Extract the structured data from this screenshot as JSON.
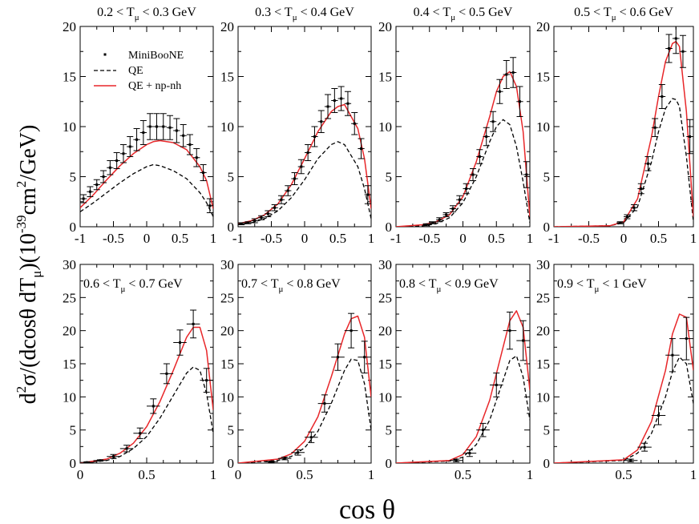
{
  "figure": {
    "xlabel": "cos θ",
    "ylabel": {
      "prefix": "d",
      "sup1": "2",
      "mid": "σ/(dcosθ dT",
      "sub": "μ",
      "mid2": ")(10",
      "sup2": "-39",
      "mid3": "cm",
      "sup3": "2",
      "suffix": "/GeV)"
    },
    "legend": {
      "placement": "top-left of first panel",
      "entries": [
        "MiniBooNE",
        "QE",
        "QE + np-nh"
      ]
    },
    "colors": {
      "data": "#000000",
      "qe": "#000000",
      "qe_npnh": "#e8272a"
    }
  },
  "chart_data": [
    {
      "type": "line",
      "title": "0.2 < T_μ < 0.3 GeV",
      "xlim": [
        -1,
        1
      ],
      "ylim": [
        0,
        20
      ],
      "xticks": [
        -1,
        -0.5,
        0,
        0.5,
        1
      ],
      "xticklabels": [
        "-1",
        "-0.5",
        "0",
        "0.5",
        "1"
      ],
      "yticks": [
        0,
        5,
        10,
        15,
        20
      ],
      "yticklabels": [
        "0",
        "5",
        "10",
        "15",
        "20"
      ],
      "data": {
        "x": [
          -0.95,
          -0.85,
          -0.75,
          -0.65,
          -0.55,
          -0.45,
          -0.35,
          -0.25,
          -0.15,
          -0.05,
          0.05,
          0.15,
          0.25,
          0.35,
          0.45,
          0.55,
          0.65,
          0.75,
          0.85,
          0.95
        ],
        "y": [
          2.8,
          3.5,
          4.2,
          5.0,
          5.9,
          6.6,
          7.3,
          8.0,
          8.7,
          9.4,
          10.0,
          10.0,
          10.0,
          9.9,
          9.6,
          9.1,
          8.2,
          6.9,
          5.4,
          2.1
        ],
        "err": [
          0.4,
          0.5,
          0.5,
          0.6,
          0.7,
          0.8,
          0.9,
          1.0,
          1.1,
          1.2,
          1.3,
          1.3,
          1.3,
          1.2,
          1.2,
          1.1,
          1.0,
          0.9,
          0.8,
          0.7
        ],
        "xerr": 0.05
      },
      "series": [
        {
          "name": "QE",
          "x": [
            -1,
            -0.8,
            -0.6,
            -0.4,
            -0.2,
            0,
            0.1,
            0.2,
            0.4,
            0.6,
            0.8,
            0.9,
            1
          ],
          "y": [
            1.5,
            2.4,
            3.4,
            4.4,
            5.3,
            6.0,
            6.2,
            6.1,
            5.6,
            4.8,
            3.4,
            2.4,
            1.0
          ]
        },
        {
          "name": "QE + np-nh",
          "x": [
            -1,
            -0.8,
            -0.6,
            -0.4,
            -0.2,
            0,
            0.1,
            0.2,
            0.4,
            0.6,
            0.8,
            0.9,
            1
          ],
          "y": [
            1.9,
            3.2,
            4.7,
            6.1,
            7.3,
            8.2,
            8.5,
            8.6,
            8.4,
            7.7,
            6.0,
            4.6,
            1.8
          ]
        }
      ]
    },
    {
      "type": "line",
      "title": "0.3 < T_μ < 0.4 GeV",
      "xlim": [
        -1,
        1
      ],
      "ylim": [
        0,
        20
      ],
      "xticks": [
        -1,
        -0.5,
        0,
        0.5,
        1
      ],
      "xticklabels": [
        "-1",
        "-0.5",
        "0",
        "0.5",
        "1"
      ],
      "yticks": [
        0,
        5,
        10,
        15,
        20
      ],
      "yticklabels": [
        "0",
        "5",
        "10",
        "15",
        "20"
      ],
      "data": {
        "x": [
          -0.95,
          -0.85,
          -0.75,
          -0.65,
          -0.55,
          -0.45,
          -0.35,
          -0.25,
          -0.15,
          -0.05,
          0.05,
          0.15,
          0.25,
          0.35,
          0.45,
          0.55,
          0.65,
          0.75,
          0.85,
          0.95
        ],
        "y": [
          0.3,
          0.4,
          0.6,
          0.9,
          1.3,
          1.9,
          2.7,
          3.6,
          4.8,
          6.0,
          7.4,
          9.0,
          10.5,
          12.0,
          12.6,
          12.8,
          12.3,
          10.3,
          7.8,
          3.2
        ],
        "err": [
          0.1,
          0.1,
          0.2,
          0.2,
          0.3,
          0.3,
          0.4,
          0.5,
          0.6,
          0.7,
          0.8,
          1.0,
          1.1,
          1.2,
          1.2,
          1.2,
          1.2,
          1.1,
          1.0,
          0.9
        ],
        "xerr": 0.05
      },
      "series": [
        {
          "name": "QE",
          "x": [
            -1,
            -0.8,
            -0.6,
            -0.4,
            -0.2,
            0,
            0.2,
            0.4,
            0.5,
            0.6,
            0.8,
            0.9,
            1
          ],
          "y": [
            0.2,
            0.4,
            0.8,
            1.6,
            2.9,
            4.7,
            6.8,
            8.2,
            8.5,
            8.2,
            6.0,
            3.8,
            0.8
          ]
        },
        {
          "name": "QE + np-nh",
          "x": [
            -1,
            -0.8,
            -0.6,
            -0.4,
            -0.2,
            0,
            0.2,
            0.4,
            0.5,
            0.6,
            0.8,
            0.9,
            1
          ],
          "y": [
            0.3,
            0.6,
            1.2,
            2.3,
            4.2,
            6.8,
            9.5,
            11.5,
            12.0,
            12.2,
            9.8,
            6.8,
            1.8
          ]
        }
      ]
    },
    {
      "type": "line",
      "title": "0.4 < T_μ < 0.5 GeV",
      "xlim": [
        -1,
        1
      ],
      "ylim": [
        0,
        20
      ],
      "xticks": [
        -1,
        -0.5,
        0,
        0.5,
        1
      ],
      "xticklabels": [
        "-1",
        "-0.5",
        "0",
        "0.5",
        "1"
      ],
      "yticks": [
        0,
        5,
        10,
        15,
        20
      ],
      "yticklabels": [
        "0",
        "5",
        "10",
        "15",
        "20"
      ],
      "data": {
        "x": [
          -0.55,
          -0.45,
          -0.35,
          -0.25,
          -0.15,
          -0.05,
          0.05,
          0.15,
          0.25,
          0.35,
          0.45,
          0.55,
          0.65,
          0.75,
          0.85,
          0.95
        ],
        "y": [
          0.2,
          0.4,
          0.7,
          1.2,
          1.8,
          2.7,
          3.8,
          5.2,
          7.0,
          9.0,
          10.5,
          13.5,
          15.2,
          15.4,
          12.5,
          5.2
        ],
        "err": [
          0.1,
          0.1,
          0.2,
          0.2,
          0.3,
          0.4,
          0.5,
          0.6,
          0.7,
          0.9,
          1.0,
          1.2,
          1.4,
          1.5,
          1.5,
          1.3
        ],
        "xerr": 0.05
      },
      "series": [
        {
          "name": "QE",
          "x": [
            -1,
            -0.6,
            -0.4,
            -0.2,
            0,
            0.2,
            0.4,
            0.5,
            0.6,
            0.7,
            0.8,
            0.9,
            1
          ],
          "y": [
            0,
            0.1,
            0.3,
            0.9,
            2.4,
            5.0,
            8.5,
            10.0,
            10.7,
            10.2,
            8.0,
            4.5,
            0.4
          ]
        },
        {
          "name": "QE + np-nh",
          "x": [
            -1,
            -0.6,
            -0.4,
            -0.2,
            0,
            0.2,
            0.4,
            0.5,
            0.6,
            0.7,
            0.8,
            0.9,
            1
          ],
          "y": [
            0,
            0.2,
            0.5,
            1.2,
            3.0,
            6.5,
            11.0,
            13.5,
            15.0,
            15.5,
            14.0,
            9.5,
            1.0
          ]
        }
      ]
    },
    {
      "type": "line",
      "title": "0.5 < T_μ < 0.6 GeV",
      "xlim": [
        -1,
        1
      ],
      "ylim": [
        0,
        20
      ],
      "xticks": [
        -1,
        -0.5,
        0,
        0.5,
        1
      ],
      "xticklabels": [
        "-1",
        "-0.5",
        "0",
        "0.5",
        "1"
      ],
      "yticks": [
        0,
        5,
        10,
        15,
        20
      ],
      "yticklabels": [
        "0",
        "5",
        "10",
        "15",
        "20"
      ],
      "data": {
        "x": [
          -0.05,
          0.05,
          0.15,
          0.25,
          0.35,
          0.45,
          0.55,
          0.65,
          0.75,
          0.85,
          0.95
        ],
        "y": [
          0.4,
          1.0,
          1.9,
          3.8,
          6.3,
          9.9,
          13.0,
          17.8,
          18.8,
          17.5,
          9.0
        ],
        "err": [
          0.1,
          0.2,
          0.3,
          0.5,
          0.7,
          0.9,
          1.2,
          1.4,
          1.5,
          1.6,
          1.7
        ],
        "xerr": 0.05
      },
      "series": [
        {
          "name": "QE",
          "x": [
            -1,
            -0.2,
            0,
            0.2,
            0.4,
            0.5,
            0.6,
            0.7,
            0.75,
            0.8,
            0.9,
            1
          ],
          "y": [
            0,
            0.1,
            0.4,
            2.0,
            6.5,
            9.5,
            11.8,
            12.8,
            12.7,
            12.0,
            7.0,
            0.5
          ]
        },
        {
          "name": "QE + np-nh",
          "x": [
            -1,
            -0.2,
            0,
            0.2,
            0.4,
            0.5,
            0.6,
            0.7,
            0.75,
            0.8,
            0.9,
            1
          ],
          "y": [
            0,
            0.1,
            0.5,
            2.8,
            9.0,
            13.0,
            16.5,
            18.3,
            18.5,
            18.0,
            11.5,
            1.0
          ]
        }
      ]
    },
    {
      "type": "line",
      "title": "0.6 < T_μ < 0.7 GeV",
      "xlim": [
        0,
        1
      ],
      "ylim": [
        0,
        30
      ],
      "xticks": [
        0,
        0.5,
        1
      ],
      "xticklabels": [
        "0",
        "0.5",
        "1"
      ],
      "yticks": [
        0,
        5,
        10,
        15,
        20,
        25,
        30
      ],
      "yticklabels": [
        "0",
        "5",
        "10",
        "15",
        "20",
        "25",
        "30"
      ],
      "data": {
        "x": [
          0.05,
          0.15,
          0.25,
          0.35,
          0.45,
          0.55,
          0.65,
          0.75,
          0.85,
          0.95
        ],
        "y": [
          0.1,
          0.4,
          1.0,
          2.2,
          4.5,
          8.6,
          13.5,
          18.2,
          21.0,
          12.5
        ],
        "err": [
          0.1,
          0.1,
          0.3,
          0.5,
          0.8,
          1.1,
          1.5,
          1.9,
          2.1,
          1.8
        ],
        "xerr": 0.05
      },
      "series": [
        {
          "name": "QE",
          "x": [
            0,
            0.2,
            0.3,
            0.4,
            0.5,
            0.6,
            0.7,
            0.8,
            0.85,
            0.9,
            0.95,
            1
          ],
          "y": [
            0,
            0.4,
            1.0,
            2.2,
            4.0,
            6.8,
            10.2,
            13.6,
            14.5,
            14.0,
            10.5,
            4.5
          ]
        },
        {
          "name": "QE + np-nh",
          "x": [
            0,
            0.2,
            0.3,
            0.4,
            0.5,
            0.6,
            0.7,
            0.8,
            0.85,
            0.9,
            0.95,
            1
          ],
          "y": [
            0,
            0.6,
            1.5,
            3.0,
            5.5,
            9.3,
            14.0,
            19.0,
            20.5,
            20.5,
            17.0,
            8.0
          ]
        }
      ]
    },
    {
      "type": "line",
      "title": "0.7 < T_μ < 0.8 GeV",
      "xlim": [
        0,
        1
      ],
      "ylim": [
        0,
        30
      ],
      "xticks": [
        0,
        0.5,
        1
      ],
      "xticklabels": [
        "0",
        "0.5",
        "1"
      ],
      "yticks": [
        0,
        5,
        10,
        15,
        20,
        25,
        30
      ],
      "yticklabels": [
        "0",
        "5",
        "10",
        "15",
        "20",
        "25",
        "30"
      ],
      "data": {
        "x": [
          0.25,
          0.35,
          0.45,
          0.55,
          0.65,
          0.75,
          0.85,
          0.95
        ],
        "y": [
          0.2,
          0.7,
          1.6,
          3.9,
          9.0,
          16.0,
          20.0,
          16.0
        ],
        "err": [
          0.1,
          0.2,
          0.4,
          0.8,
          1.3,
          2.0,
          2.6,
          2.4
        ],
        "xerr": 0.05
      },
      "series": [
        {
          "name": "QE",
          "x": [
            0,
            0.3,
            0.4,
            0.5,
            0.6,
            0.7,
            0.8,
            0.85,
            0.9,
            0.95,
            1
          ],
          "y": [
            0,
            0.4,
            1.0,
            2.3,
            4.8,
            9.0,
            14.0,
            15.7,
            15.5,
            12.0,
            5.0
          ]
        },
        {
          "name": "QE + np-nh",
          "x": [
            0,
            0.3,
            0.4,
            0.5,
            0.6,
            0.7,
            0.8,
            0.85,
            0.9,
            0.95,
            1
          ],
          "y": [
            0,
            0.6,
            1.4,
            3.3,
            7.0,
            13.0,
            19.5,
            21.8,
            22.2,
            19.0,
            10.0
          ]
        }
      ]
    },
    {
      "type": "line",
      "title": "0.8 < T_μ < 0.9 GeV",
      "xlim": [
        0,
        1
      ],
      "ylim": [
        0,
        30
      ],
      "xticks": [
        0.5,
        1
      ],
      "xticklabels": [
        "0.5",
        "1"
      ],
      "yticks": [
        0,
        5,
        10,
        15,
        20,
        25,
        30
      ],
      "yticklabels": [
        "0",
        "5",
        "10",
        "15",
        "20",
        "25",
        "30"
      ],
      "data": {
        "x": [
          0.45,
          0.55,
          0.65,
          0.75,
          0.85,
          0.95
        ],
        "y": [
          0.4,
          1.5,
          5.0,
          11.8,
          20.0,
          18.5
        ],
        "err": [
          0.2,
          0.5,
          1.0,
          1.8,
          2.8,
          3.0
        ],
        "xerr": 0.05
      },
      "series": [
        {
          "name": "QE",
          "x": [
            0,
            0.4,
            0.5,
            0.6,
            0.7,
            0.8,
            0.85,
            0.9,
            0.95,
            1
          ],
          "y": [
            0,
            0.3,
            0.9,
            2.8,
            6.5,
            12.5,
            15.5,
            16.2,
            13.0,
            6.5
          ]
        },
        {
          "name": "QE + np-nh",
          "x": [
            0,
            0.4,
            0.5,
            0.6,
            0.7,
            0.8,
            0.85,
            0.9,
            0.95,
            1
          ],
          "y": [
            0,
            0.4,
            1.3,
            4.0,
            9.5,
            17.5,
            21.5,
            23.0,
            20.5,
            11.0
          ]
        }
      ]
    },
    {
      "type": "line",
      "title": "0.9 < T_μ < 1 GeV",
      "xlim": [
        0,
        1
      ],
      "ylim": [
        0,
        30
      ],
      "xticks": [
        0.5,
        1
      ],
      "xticklabels": [
        "0.5",
        "1"
      ],
      "yticks": [
        0,
        5,
        10,
        15,
        20,
        25,
        30
      ],
      "yticklabels": [
        "0",
        "5",
        "10",
        "15",
        "20",
        "25",
        "30"
      ],
      "data": {
        "x": [
          0.55,
          0.65,
          0.75,
          0.85,
          0.95
        ],
        "y": [
          0.4,
          2.4,
          7.2,
          16.3,
          18.8
        ],
        "err": [
          0.2,
          0.6,
          1.4,
          2.5,
          3.2
        ],
        "xerr": 0.05
      },
      "series": [
        {
          "name": "QE",
          "x": [
            0,
            0.5,
            0.6,
            0.7,
            0.8,
            0.85,
            0.9,
            0.95,
            1
          ],
          "y": [
            0,
            0.4,
            1.5,
            4.5,
            10.0,
            13.8,
            16.0,
            15.0,
            9.0
          ]
        },
        {
          "name": "QE + np-nh",
          "x": [
            0,
            0.5,
            0.6,
            0.7,
            0.8,
            0.85,
            0.9,
            0.95,
            1
          ],
          "y": [
            0,
            0.5,
            2.0,
            6.3,
            14.0,
            19.5,
            22.5,
            22.0,
            14.0
          ]
        }
      ]
    }
  ]
}
